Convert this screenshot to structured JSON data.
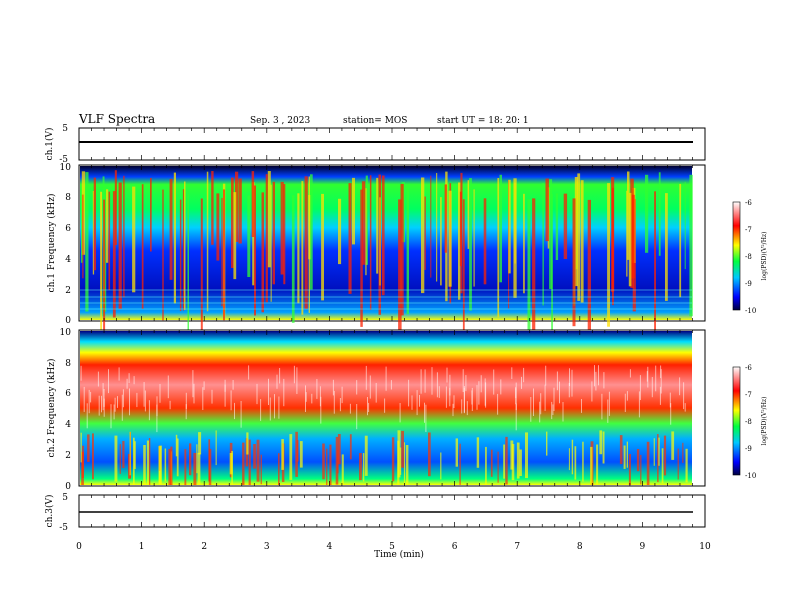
{
  "header": {
    "title": "VLF Spectra",
    "date": "Sep. 3 , 2023",
    "station": "station= MOS",
    "start": "start UT =  18: 20: 1"
  },
  "chart_data": [
    {
      "type": "line",
      "panel": "ch1-voltage",
      "ylabel": "ch.1(V)",
      "ylim": [
        -5,
        5
      ],
      "y_ticks": [
        "5",
        "-5"
      ],
      "series": [
        {
          "x": [
            0,
            9.8
          ],
          "y": [
            0,
            0
          ]
        }
      ]
    },
    {
      "type": "heatmap",
      "panel": "ch1-spectrogram",
      "ylabel": "ch.1 Frequency (kHz)",
      "ylim": [
        0,
        10
      ],
      "y_ticks": [
        "0",
        "2",
        "4",
        "6",
        "8",
        "10"
      ],
      "xlim": [
        0,
        9.8
      ],
      "colorbar": {
        "label": "log(PSD)(V²/Hz)",
        "range": [
          -10,
          -6
        ],
        "ticks": [
          "-6",
          "-7",
          "-8",
          "-9",
          "-10"
        ]
      }
    },
    {
      "type": "heatmap",
      "panel": "ch2-spectrogram",
      "ylabel": "ch.2 Frequency (kHz)",
      "ylim": [
        0,
        10
      ],
      "y_ticks": [
        "0",
        "2",
        "4",
        "6",
        "8",
        "10"
      ],
      "xlim": [
        0,
        9.8
      ],
      "colorbar": {
        "label": "log(PSD)(V²/Hz)",
        "range": [
          -10,
          -6
        ],
        "ticks": [
          "-6",
          "-7",
          "-8",
          "-9",
          "-10"
        ]
      }
    },
    {
      "type": "line",
      "panel": "ch3-voltage",
      "ylabel": "ch.3(V)",
      "ylim": [
        -5,
        5
      ],
      "y_ticks": [
        "5",
        "-5"
      ],
      "series": [
        {
          "x": [
            0,
            9.8
          ],
          "y": [
            0,
            0
          ]
        }
      ]
    }
  ],
  "x_axis": {
    "label": "Time (min)",
    "range": [
      0,
      10
    ],
    "ticks": [
      "0",
      "1",
      "2",
      "3",
      "4",
      "5",
      "6",
      "7",
      "8",
      "9",
      "10"
    ]
  }
}
